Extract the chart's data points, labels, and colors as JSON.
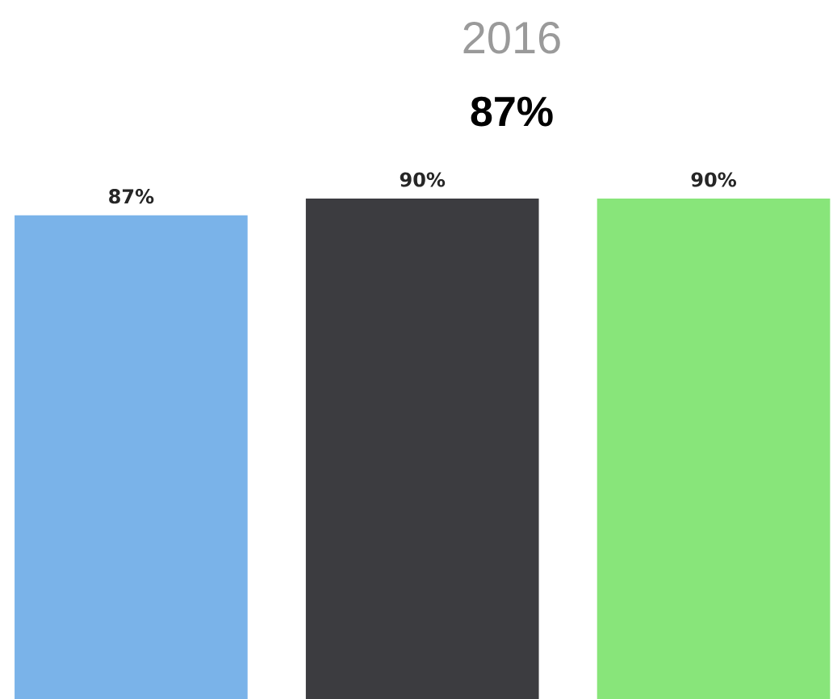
{
  "chart_data": {
    "type": "bar",
    "title": "2016",
    "subtitle": "87%",
    "categories": [
      null,
      null,
      null
    ],
    "values": [
      87,
      90,
      90
    ],
    "colors": [
      "#7ab3e9",
      "#3c3c40",
      "#88e57a"
    ],
    "value_labels": [
      "87%",
      "90%",
      "90%"
    ]
  }
}
